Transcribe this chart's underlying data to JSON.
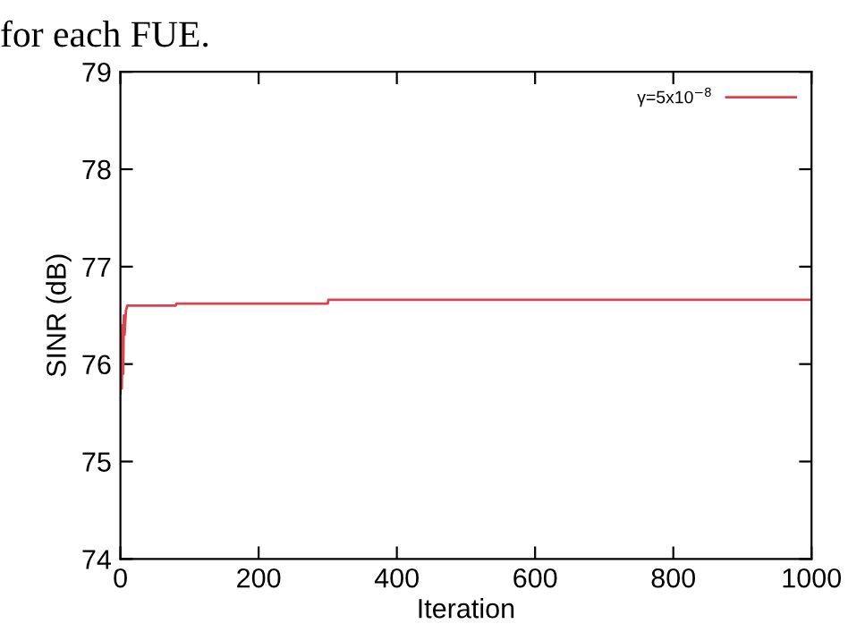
{
  "chart_data": {
    "type": "line",
    "xlabel": "Iteration",
    "ylabel": "SINR (dB)",
    "annotations": [
      "for each FUE."
    ],
    "xlim": [
      0,
      1000
    ],
    "xticks": [
      0,
      200,
      400,
      600,
      800,
      1000
    ],
    "ylim": [
      74,
      79
    ],
    "yticks": [
      74,
      75,
      76,
      77,
      78,
      79
    ],
    "grid": false,
    "legend": "top right",
    "marker": "none",
    "line_style": "solid",
    "series": [
      {
        "name": "γ=5x10$^{−8}$",
        "color": "#d9434f",
        "x": [
          0,
          1,
          2,
          3,
          4,
          5,
          6,
          8,
          10,
          80,
          81,
          300,
          301,
          1000
        ],
        "values": [
          75.7,
          76.3,
          75.75,
          76.4,
          75.9,
          76.5,
          76.3,
          76.55,
          76.6,
          76.6,
          76.62,
          76.62,
          76.66,
          76.66
        ]
      }
    ]
  }
}
